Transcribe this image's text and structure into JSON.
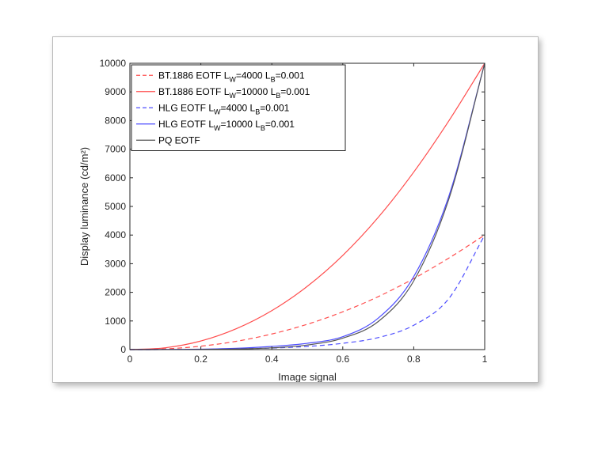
{
  "chart_data": {
    "type": "line",
    "title": "",
    "xlabel": "Image signal",
    "ylabel": "Display luminance (cd/m²)",
    "xlim": [
      0,
      1
    ],
    "ylim": [
      0,
      10000
    ],
    "x_ticks": [
      0,
      0.2,
      0.4,
      0.6,
      0.8,
      1
    ],
    "x_tick_labels": [
      "0",
      "0.2",
      "0.4",
      "0.6",
      "0.8",
      "1"
    ],
    "y_ticks": [
      0,
      1000,
      2000,
      3000,
      4000,
      5000,
      6000,
      7000,
      8000,
      9000,
      10000
    ],
    "y_tick_labels": [
      "0",
      "1000",
      "2000",
      "3000",
      "4000",
      "5000",
      "6000",
      "7000",
      "8000",
      "9000",
      "10000"
    ],
    "grid": false,
    "legend_position": "top-left",
    "x": [
      0,
      0.1,
      0.2,
      0.3,
      0.4,
      0.5,
      0.6,
      0.7,
      0.8,
      0.9,
      1.0
    ],
    "series": [
      {
        "name": "BT.1886 EOTF  L_W=4000  L_B=0.001",
        "color": "#ff4d4d",
        "dash": "dashed",
        "legend_parts": [
          {
            "text": "BT.1886 EOTF  L"
          },
          {
            "text": "W",
            "sub": true
          },
          {
            "text": "=4000  L"
          },
          {
            "text": "B",
            "sub": true
          },
          {
            "text": "=0.001"
          }
        ],
        "values": [
          0,
          26,
          120,
          290,
          545,
          885,
          1320,
          1850,
          2480,
          3205,
          4000
        ]
      },
      {
        "name": "BT.1886 EOTF  L_W=10000  L_B=0.001",
        "color": "#ff4d4d",
        "dash": "solid",
        "legend_parts": [
          {
            "text": "BT.1886 EOTF  L"
          },
          {
            "text": "W",
            "sub": true
          },
          {
            "text": "=10000  L"
          },
          {
            "text": "B",
            "sub": true
          },
          {
            "text": "=0.001"
          }
        ],
        "values": [
          0,
          64,
          300,
          730,
          1360,
          2210,
          3290,
          4620,
          6200,
          8010,
          10000
        ]
      },
      {
        "name": "HLG EOTF  L_W=4000  L_B=0.001",
        "color": "#4d4dff",
        "dash": "dashed",
        "legend_parts": [
          {
            "text": "HLG EOTF  L"
          },
          {
            "text": "W",
            "sub": true
          },
          {
            "text": "=4000  L"
          },
          {
            "text": "B",
            "sub": true
          },
          {
            "text": "=0.001"
          }
        ],
        "values": [
          0,
          2,
          8,
          25,
          55,
          110,
          220,
          420,
          850,
          1800,
          4000
        ]
      },
      {
        "name": "HLG EOTF  L_W=10000  L_B=0.001",
        "color": "#4d4dff",
        "dash": "solid",
        "legend_parts": [
          {
            "text": "HLG EOTF  L"
          },
          {
            "text": "W",
            "sub": true
          },
          {
            "text": "=10000  L"
          },
          {
            "text": "B",
            "sub": true
          },
          {
            "text": "=0.001"
          }
        ],
        "values": [
          0,
          3,
          15,
          45,
          110,
          220,
          450,
          1100,
          2550,
          5400,
          10000
        ]
      },
      {
        "name": "PQ EOTF",
        "color": "#555555",
        "dash": "solid",
        "legend_parts": [
          {
            "text": "PQ EOTF"
          }
        ],
        "values": [
          0,
          1,
          5,
          20,
          60,
          160,
          400,
          980,
          2400,
          5300,
          10000
        ]
      }
    ]
  }
}
